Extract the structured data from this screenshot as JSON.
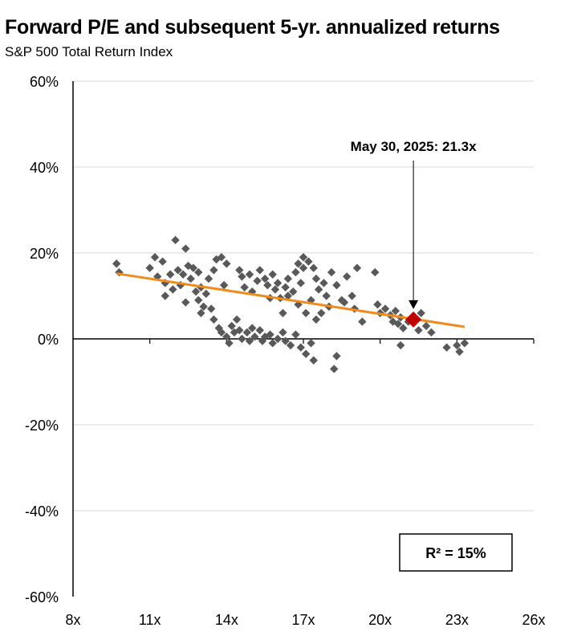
{
  "chart_data": {
    "type": "scatter",
    "title": "Forward P/E and subsequent 5-yr. annualized returns",
    "subtitle": "S&P 500 Total Return Index",
    "x_ticks": [
      "8x",
      "11x",
      "14x",
      "17x",
      "20x",
      "23x",
      "26x"
    ],
    "y_ticks": [
      "60%",
      "40%",
      "20%",
      "0%",
      "-20%",
      "-40%",
      "-60%"
    ],
    "xlim": [
      8,
      26
    ],
    "ylim": [
      -60,
      60
    ],
    "grid": "horizontal",
    "colors": {
      "points": "#595959",
      "trend": "#f08c1e",
      "highlight": "#c00000"
    },
    "points": [
      [
        9.7,
        17.5
      ],
      [
        9.8,
        15.5
      ],
      [
        11.2,
        19
      ],
      [
        11.5,
        18
      ],
      [
        11.0,
        16.5
      ],
      [
        11.3,
        14.5
      ],
      [
        11.6,
        13
      ],
      [
        11.8,
        15
      ],
      [
        12.0,
        23
      ],
      [
        12.1,
        16
      ],
      [
        12.3,
        15
      ],
      [
        12.4,
        21
      ],
      [
        12.5,
        17
      ],
      [
        12.6,
        14
      ],
      [
        12.7,
        16.5
      ],
      [
        12.9,
        15.5
      ],
      [
        13.0,
        12
      ],
      [
        12.8,
        11
      ],
      [
        12.2,
        12.5
      ],
      [
        11.9,
        11.5
      ],
      [
        11.6,
        10
      ],
      [
        12.4,
        8.5
      ],
      [
        12.9,
        9
      ],
      [
        13.2,
        10.5
      ],
      [
        13.3,
        14
      ],
      [
        13.5,
        16
      ],
      [
        13.6,
        18.5
      ],
      [
        13.8,
        19
      ],
      [
        14.0,
        17.5
      ],
      [
        13.9,
        12.5
      ],
      [
        13.1,
        7.5
      ],
      [
        13.0,
        6
      ],
      [
        13.4,
        7
      ],
      [
        13.5,
        4.5
      ],
      [
        13.7,
        2.5
      ],
      [
        13.8,
        1.5
      ],
      [
        14.0,
        0.5
      ],
      [
        14.2,
        3
      ],
      [
        14.1,
        -1
      ],
      [
        14.3,
        1.5
      ],
      [
        14.4,
        4.5
      ],
      [
        14.5,
        2
      ],
      [
        14.6,
        0
      ],
      [
        14.8,
        1.5
      ],
      [
        14.9,
        -0.5
      ],
      [
        15.0,
        2.5
      ],
      [
        15.1,
        0.5
      ],
      [
        15.3,
        2
      ],
      [
        15.4,
        -0.5
      ],
      [
        15.5,
        0.5
      ],
      [
        15.7,
        1
      ],
      [
        15.8,
        -1
      ],
      [
        16.0,
        0
      ],
      [
        16.2,
        1.5
      ],
      [
        16.3,
        -0.5
      ],
      [
        16.5,
        -1.5
      ],
      [
        16.7,
        1
      ],
      [
        16.9,
        -2
      ],
      [
        17.1,
        -3.5
      ],
      [
        17.3,
        -1
      ],
      [
        17.4,
        -5
      ],
      [
        18.2,
        -7
      ],
      [
        18.3,
        -4
      ],
      [
        14.5,
        16
      ],
      [
        14.6,
        14.5
      ],
      [
        14.7,
        12
      ],
      [
        14.9,
        15
      ],
      [
        15.0,
        11
      ],
      [
        15.2,
        13.5
      ],
      [
        15.3,
        16
      ],
      [
        15.5,
        14
      ],
      [
        15.6,
        12.5
      ],
      [
        15.8,
        15
      ],
      [
        15.9,
        11.5
      ],
      [
        16.0,
        13
      ],
      [
        16.1,
        9.5
      ],
      [
        16.3,
        12
      ],
      [
        16.4,
        14
      ],
      [
        16.6,
        11
      ],
      [
        16.7,
        15.5
      ],
      [
        16.9,
        13
      ],
      [
        17.0,
        16.5
      ],
      [
        16.8,
        17.5
      ],
      [
        17.0,
        19
      ],
      [
        17.2,
        18
      ],
      [
        17.4,
        16.5
      ],
      [
        17.5,
        14
      ],
      [
        17.6,
        11.5
      ],
      [
        17.3,
        9
      ],
      [
        17.1,
        6
      ],
      [
        17.8,
        13
      ],
      [
        17.9,
        10
      ],
      [
        18.0,
        7.5
      ],
      [
        17.7,
        6
      ],
      [
        18.1,
        15.5
      ],
      [
        18.3,
        12.5
      ],
      [
        18.5,
        9
      ],
      [
        18.7,
        14.5
      ],
      [
        18.9,
        10
      ],
      [
        19.1,
        16.5
      ],
      [
        19.3,
        4
      ],
      [
        19.0,
        7
      ],
      [
        16.4,
        10
      ],
      [
        15.7,
        9.5
      ],
      [
        16.2,
        6
      ],
      [
        16.8,
        8
      ],
      [
        17.5,
        4.5
      ],
      [
        18.6,
        8.5
      ],
      [
        19.8,
        15.5
      ],
      [
        19.9,
        8
      ],
      [
        20.0,
        6
      ],
      [
        20.2,
        7
      ],
      [
        20.4,
        5.5
      ],
      [
        20.5,
        4
      ],
      [
        20.7,
        3.5
      ],
      [
        20.6,
        6.5
      ],
      [
        20.8,
        5
      ],
      [
        20.9,
        2.5
      ],
      [
        21.1,
        4
      ],
      [
        21.6,
        6
      ],
      [
        21.8,
        3
      ],
      [
        22.0,
        1.5
      ],
      [
        21.5,
        2
      ],
      [
        20.8,
        -1.5
      ],
      [
        22.6,
        -2
      ],
      [
        23.0,
        -1.5
      ],
      [
        23.3,
        -1
      ],
      [
        23.1,
        -3
      ]
    ],
    "highlight": {
      "x": 21.3,
      "y": 4.5
    },
    "trendline": {
      "x": [
        9.7,
        23.3
      ],
      "y": [
        15.2,
        2.8
      ]
    },
    "annotation": "May 30, 2025:  21.3x",
    "r2_label": "R² = 15%"
  }
}
